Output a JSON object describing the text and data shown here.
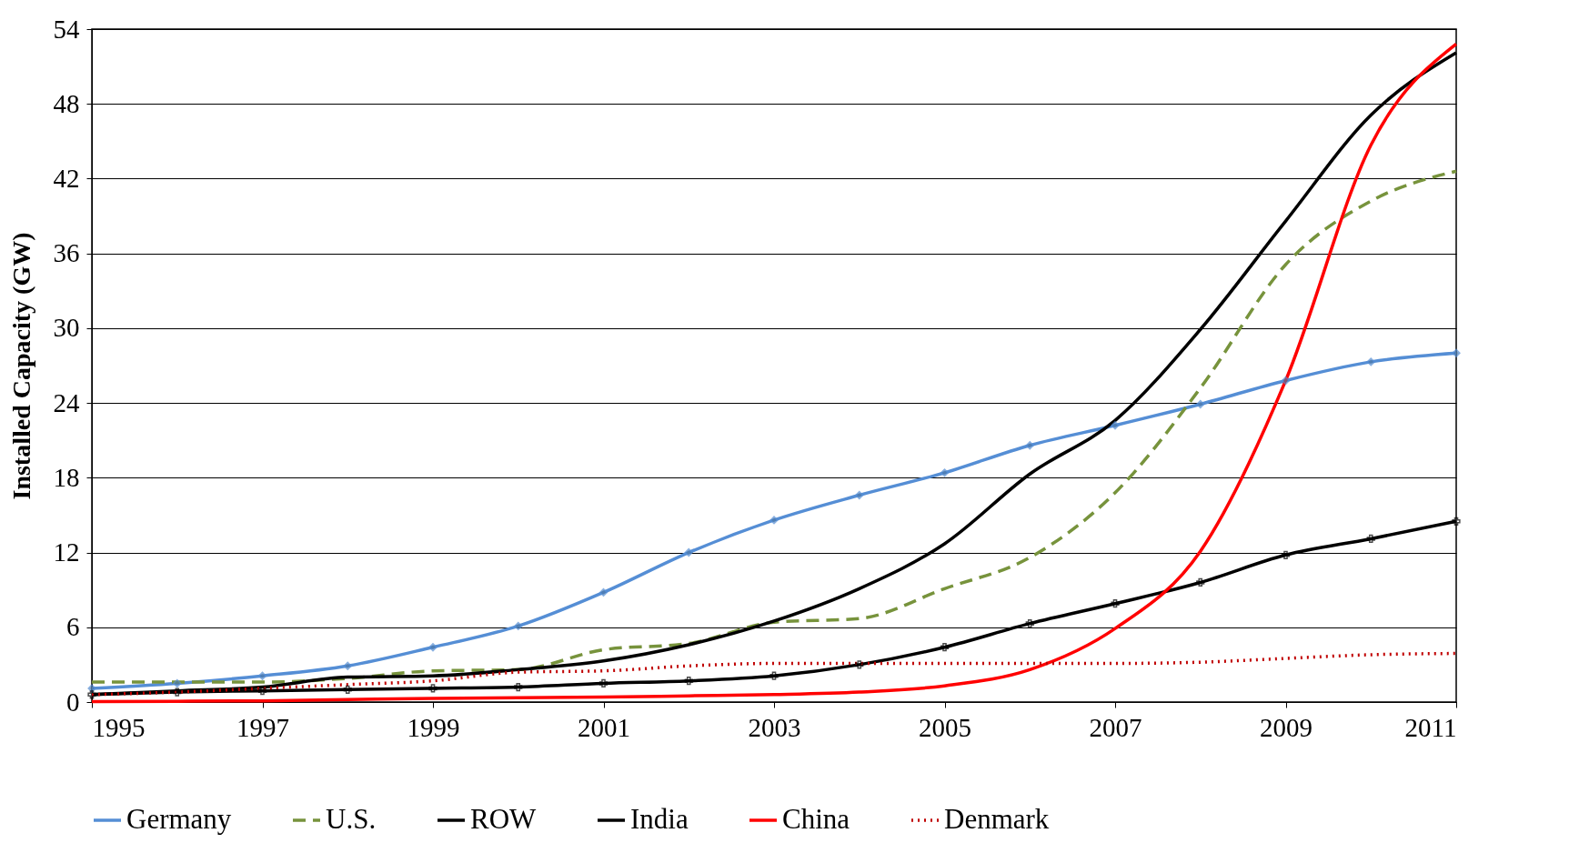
{
  "chart_data": {
    "type": "line",
    "ylabel": "Installed Capacity (GW)",
    "x": [
      1995,
      1996,
      1997,
      1998,
      1999,
      2000,
      2001,
      2002,
      2003,
      2004,
      2005,
      2006,
      2007,
      2008,
      2009,
      2010,
      2011
    ],
    "xlim": [
      1995,
      2011
    ],
    "xticks": [
      1995,
      1997,
      1999,
      2001,
      2003,
      2005,
      2007,
      2009,
      2011
    ],
    "ylim": [
      0,
      54
    ],
    "yticks": [
      0,
      6,
      12,
      18,
      24,
      30,
      36,
      42,
      48,
      54
    ],
    "grid": "y",
    "legend": "bottom",
    "series": [
      {
        "name": "Germany",
        "color": "#558ed5",
        "marker": "diamond",
        "line_style": "solid",
        "values": [
          1.1,
          1.5,
          2.1,
          2.9,
          4.4,
          6.1,
          8.8,
          12.0,
          14.6,
          16.6,
          18.4,
          20.6,
          22.2,
          23.9,
          25.8,
          27.3,
          28.0
        ]
      },
      {
        "name": "U.S.",
        "color": "#77933c",
        "marker": "none",
        "line_style": "dashed",
        "values": [
          1.6,
          1.6,
          1.6,
          1.9,
          2.5,
          2.6,
          4.2,
          4.7,
          6.4,
          6.7,
          9.1,
          11.6,
          16.8,
          25.2,
          35.1,
          40.2,
          42.6
        ]
      },
      {
        "name": "ROW",
        "color": "#000000",
        "marker": "none",
        "line_style": "solid",
        "values": [
          0.6,
          0.9,
          1.2,
          2.0,
          2.1,
          2.6,
          3.3,
          4.6,
          6.5,
          9.1,
          12.7,
          18.3,
          22.6,
          29.9,
          38.6,
          47.1,
          52.1
        ]
      },
      {
        "name": "India",
        "color": "#000000",
        "marker": "cross",
        "line_style": "solid",
        "values": [
          0.6,
          0.8,
          0.9,
          1.0,
          1.1,
          1.2,
          1.5,
          1.7,
          2.1,
          3.0,
          4.4,
          6.3,
          7.9,
          9.6,
          11.8,
          13.1,
          14.5
        ]
      },
      {
        "name": "China",
        "color": "#ff0000",
        "marker": "none",
        "line_style": "solid",
        "values": [
          0.04,
          0.06,
          0.1,
          0.2,
          0.3,
          0.35,
          0.4,
          0.5,
          0.6,
          0.8,
          1.3,
          2.6,
          5.9,
          12.1,
          25.8,
          44.7,
          52.8
        ]
      },
      {
        "name": "Denmark",
        "color": "#c00000",
        "marker": "none",
        "line_style": "dotted",
        "values": [
          0.6,
          0.8,
          1.1,
          1.4,
          1.7,
          2.4,
          2.5,
          2.9,
          3.1,
          3.1,
          3.1,
          3.1,
          3.1,
          3.2,
          3.5,
          3.8,
          3.9
        ]
      }
    ]
  }
}
